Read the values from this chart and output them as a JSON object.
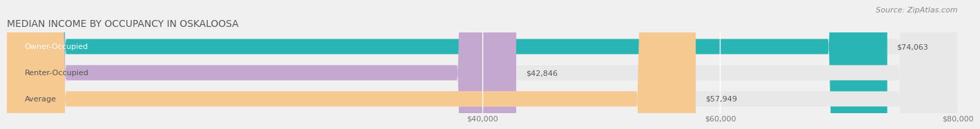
{
  "title": "MEDIAN INCOME BY OCCUPANCY IN OSKALOOSA",
  "source": "Source: ZipAtlas.com",
  "categories": [
    "Owner-Occupied",
    "Renter-Occupied",
    "Average"
  ],
  "values": [
    74063,
    42846,
    57949
  ],
  "bar_colors": [
    "#2ab5b5",
    "#c4a8d0",
    "#f5c990"
  ],
  "value_labels": [
    "$74,063",
    "$42,846",
    "$57,949"
  ],
  "xlim": [
    0,
    80000
  ],
  "xticks": [
    40000,
    60000,
    80000
  ],
  "xtick_labels": [
    "$40,000",
    "$60,000",
    "$80,000"
  ],
  "background_color": "#f0f0f0",
  "bar_background_color": "#e8e8e8",
  "title_fontsize": 10,
  "source_fontsize": 8,
  "label_fontsize": 8,
  "value_fontsize": 8,
  "tick_fontsize": 8
}
